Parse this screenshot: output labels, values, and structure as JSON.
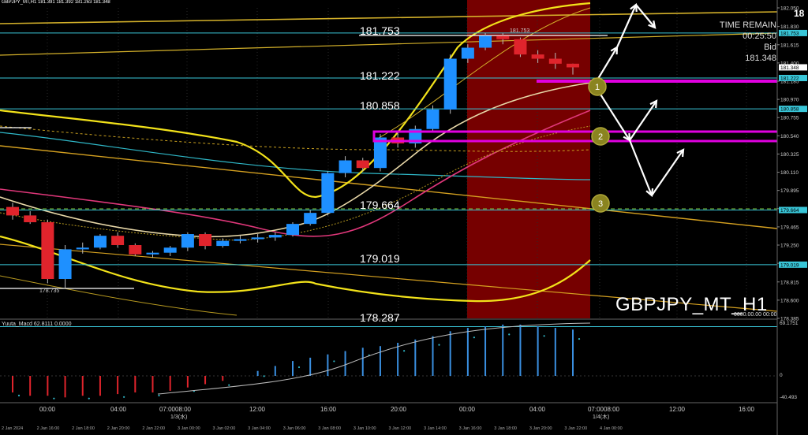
{
  "header": {
    "text": "GBPJPY_MT,H1  181.391 181.392 181.263 181.348",
    "right_number": "18"
  },
  "info": {
    "time_remain_label": "TIME REMAIN",
    "countdown": "00:25:50",
    "bid_label": "Bid",
    "bid_value": "181.348"
  },
  "symbol_label": "GBPJPY_MT_H1",
  "levels": [
    {
      "label": "181.753",
      "value": 181.753,
      "color": "#39c6d8"
    },
    {
      "label": "181.222",
      "value": 181.222,
      "color": "#39c6d8"
    },
    {
      "label": "180.858",
      "value": 180.858,
      "color": "#39c6d8"
    },
    {
      "label": "179.664",
      "value": 179.664,
      "color": "#39c6d8"
    },
    {
      "label": "179.019",
      "value": 179.019,
      "color": "#39c6d8"
    },
    {
      "label": "178.287",
      "value": 178.287,
      "color": "#39c6d8"
    }
  ],
  "chart_annotations": {
    "high_label": "181.753",
    "low_label": "178.735",
    "markers": [
      "1",
      "2",
      "3"
    ]
  },
  "macd": {
    "label": "Yuuta_Macd 62.8111 0.0000",
    "right_label": "0000.00.00 00:00",
    "scale": [
      "69.1751",
      "0",
      "-40.493"
    ]
  },
  "chart_data": {
    "type": "candlestick",
    "symbol": "GBPJPY_MT",
    "timeframe": "H1",
    "price_axis": [
      "182.050",
      "181.830",
      "181.615",
      "181.400",
      "181.185",
      "180.970",
      "180.755",
      "180.540",
      "180.325",
      "180.110",
      "179.895",
      "179.680",
      "179.465",
      "179.250",
      "179.035",
      "178.815",
      "178.600",
      "178.385"
    ],
    "price_tags": [
      {
        "label": "181.753",
        "value": 181.753,
        "color": "#39c6d8"
      },
      {
        "label": "181.348",
        "value": 181.348,
        "color": "#ffffff"
      },
      {
        "label": "181.222",
        "value": 181.222,
        "color": "#39c6d8"
      },
      {
        "label": "180.858",
        "value": 180.858,
        "color": "#39c6d8"
      },
      {
        "label": "179.664",
        "value": 179.664,
        "color": "#39c6d8"
      },
      {
        "label": "179.019",
        "value": 179.019,
        "color": "#39c6d8"
      }
    ],
    "time_axis_top": [
      "00:00",
      "04:00",
      "07:0008:00",
      "12:00",
      "16:00",
      "20:00",
      "00:00",
      "04:00",
      "07:0008:00",
      "12:00",
      "16:00"
    ],
    "time_axis_dates": [
      "1/3(水)",
      "1/4(木)"
    ],
    "time_axis_bottom": [
      "2 Jan 2024",
      "2 Jan 16:00",
      "2 Jan 18:00",
      "2 Jan 20:00",
      "2 Jan 22:00",
      "3 Jan 00:00",
      "3 Jan 02:00",
      "3 Jan 04:00",
      "3 Jan 06:00",
      "3 Jan 08:00",
      "3 Jan 10:00",
      "3 Jan 12:00",
      "3 Jan 14:00",
      "3 Jan 16:00",
      "3 Jan 18:00",
      "3 Jan 20:00",
      "3 Jan 22:00",
      "4 Jan 00:00"
    ],
    "candles": [
      {
        "o": 179.7,
        "h": 179.75,
        "l": 179.55,
        "c": 179.6
      },
      {
        "o": 179.6,
        "h": 179.65,
        "l": 179.5,
        "c": 179.52
      },
      {
        "o": 179.52,
        "h": 179.55,
        "l": 178.8,
        "c": 178.85
      },
      {
        "o": 178.85,
        "h": 179.25,
        "l": 178.735,
        "c": 179.2
      },
      {
        "o": 179.2,
        "h": 179.28,
        "l": 179.15,
        "c": 179.22
      },
      {
        "o": 179.22,
        "h": 179.38,
        "l": 179.2,
        "c": 179.36
      },
      {
        "o": 179.36,
        "h": 179.4,
        "l": 179.22,
        "c": 179.25
      },
      {
        "o": 179.25,
        "h": 179.27,
        "l": 179.12,
        "c": 179.14
      },
      {
        "o": 179.14,
        "h": 179.18,
        "l": 179.1,
        "c": 179.16
      },
      {
        "o": 179.16,
        "h": 179.24,
        "l": 179.12,
        "c": 179.22
      },
      {
        "o": 179.22,
        "h": 179.4,
        "l": 179.18,
        "c": 179.38
      },
      {
        "o": 179.38,
        "h": 179.4,
        "l": 179.2,
        "c": 179.24
      },
      {
        "o": 179.24,
        "h": 179.33,
        "l": 179.22,
        "c": 179.3
      },
      {
        "o": 179.3,
        "h": 179.36,
        "l": 179.27,
        "c": 179.32
      },
      {
        "o": 179.32,
        "h": 179.38,
        "l": 179.28,
        "c": 179.34
      },
      {
        "o": 179.34,
        "h": 179.4,
        "l": 179.3,
        "c": 179.37
      },
      {
        "o": 179.37,
        "h": 179.52,
        "l": 179.35,
        "c": 179.5
      },
      {
        "o": 179.5,
        "h": 179.66,
        "l": 179.48,
        "c": 179.63
      },
      {
        "o": 179.63,
        "h": 180.12,
        "l": 179.6,
        "c": 180.1
      },
      {
        "o": 180.1,
        "h": 180.3,
        "l": 180.05,
        "c": 180.25
      },
      {
        "o": 180.25,
        "h": 180.28,
        "l": 180.12,
        "c": 180.16
      },
      {
        "o": 180.16,
        "h": 180.56,
        "l": 180.12,
        "c": 180.52
      },
      {
        "o": 180.52,
        "h": 180.58,
        "l": 180.4,
        "c": 180.45
      },
      {
        "o": 180.45,
        "h": 180.66,
        "l": 180.4,
        "c": 180.62
      },
      {
        "o": 180.62,
        "h": 180.9,
        "l": 180.58,
        "c": 180.85
      },
      {
        "o": 180.85,
        "h": 181.5,
        "l": 180.8,
        "c": 181.45
      },
      {
        "o": 181.45,
        "h": 181.62,
        "l": 181.4,
        "c": 181.58
      },
      {
        "o": 181.58,
        "h": 181.753,
        "l": 181.55,
        "c": 181.72
      },
      {
        "o": 181.72,
        "h": 181.75,
        "l": 181.62,
        "c": 181.68
      },
      {
        "o": 181.68,
        "h": 181.7,
        "l": 181.47,
        "c": 181.5
      },
      {
        "o": 181.5,
        "h": 181.55,
        "l": 181.4,
        "c": 181.45
      },
      {
        "o": 181.45,
        "h": 181.52,
        "l": 181.33,
        "c": 181.391
      },
      {
        "o": 181.391,
        "h": 181.392,
        "l": 181.263,
        "c": 181.348
      }
    ],
    "series": [
      {
        "name": "Yuuta_Macd",
        "values": [
          -10,
          -12,
          -12,
          -13,
          -12,
          -12,
          -11,
          -10,
          -10,
          -9,
          -7,
          -5,
          -3,
          0,
          3,
          6,
          9,
          11,
          13,
          15,
          17,
          18,
          20,
          22,
          24,
          27,
          29,
          30,
          31,
          31,
          30,
          29,
          28
        ]
      }
    ],
    "colors": {
      "up": "#1e90ff",
      "down": "#e0242c",
      "forecast_zone": "#8b0000",
      "zone_box": "#e000e0"
    }
  }
}
